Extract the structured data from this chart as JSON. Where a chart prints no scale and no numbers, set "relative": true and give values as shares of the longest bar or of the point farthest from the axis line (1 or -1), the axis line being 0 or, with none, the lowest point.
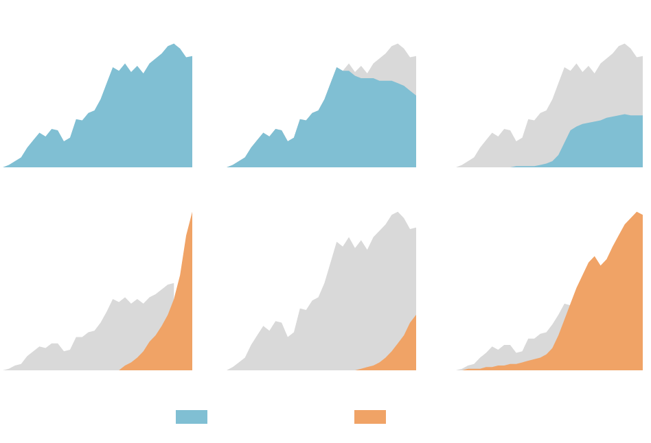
{
  "chart_data": [
    {
      "type": "area",
      "relative": true,
      "categories": [
        null,
        null,
        null,
        null,
        null,
        null,
        null,
        null,
        null,
        null,
        null,
        null,
        null,
        null,
        null,
        null,
        null,
        null,
        null,
        null,
        null,
        null,
        null,
        null,
        null,
        null,
        null,
        null,
        null,
        null,
        null,
        null
      ],
      "series": [
        {
          "color": "#80bfd3",
          "values": [
            0,
            0.02,
            0.05,
            0.08,
            0.16,
            0.22,
            0.28,
            0.25,
            0.31,
            0.3,
            0.21,
            0.24,
            0.39,
            0.38,
            0.44,
            0.46,
            0.55,
            0.68,
            0.81,
            0.78,
            0.84,
            0.77,
            0.82,
            0.76,
            0.84,
            0.88,
            0.92,
            0.98,
            1,
            0.96,
            0.89,
            0.9
          ]
        }
      ]
    },
    {
      "type": "area",
      "relative": true,
      "categories": [
        null,
        null,
        null,
        null,
        null,
        null,
        null,
        null,
        null,
        null,
        null,
        null,
        null,
        null,
        null,
        null,
        null,
        null,
        null,
        null,
        null,
        null,
        null,
        null,
        null,
        null,
        null,
        null,
        null,
        null,
        null,
        null
      ],
      "series": [
        {
          "color": "#d9d9d9",
          "values": [
            0,
            0.02,
            0.05,
            0.08,
            0.16,
            0.22,
            0.28,
            0.25,
            0.31,
            0.3,
            0.21,
            0.24,
            0.39,
            0.38,
            0.44,
            0.46,
            0.55,
            0.68,
            0.81,
            0.78,
            0.84,
            0.77,
            0.82,
            0.76,
            0.84,
            0.88,
            0.92,
            0.98,
            1,
            0.96,
            0.89,
            0.9
          ]
        },
        {
          "color": "#80bfd3",
          "values": [
            0,
            0.02,
            0.05,
            0.08,
            0.16,
            0.22,
            0.28,
            0.25,
            0.31,
            0.3,
            0.21,
            0.24,
            0.39,
            0.38,
            0.44,
            0.46,
            0.55,
            0.68,
            0.81,
            0.78,
            0.78,
            0.74,
            0.72,
            0.72,
            0.72,
            0.7,
            0.7,
            0.7,
            0.68,
            0.66,
            0.62,
            0.58
          ]
        }
      ]
    },
    {
      "type": "area",
      "relative": true,
      "categories": [
        null,
        null,
        null,
        null,
        null,
        null,
        null,
        null,
        null,
        null,
        null,
        null,
        null,
        null,
        null,
        null,
        null,
        null,
        null,
        null,
        null,
        null,
        null,
        null,
        null,
        null,
        null,
        null,
        null,
        null,
        null,
        null
      ],
      "series": [
        {
          "color": "#d9d9d9",
          "values": [
            0,
            0.02,
            0.05,
            0.08,
            0.16,
            0.22,
            0.28,
            0.25,
            0.31,
            0.3,
            0.21,
            0.24,
            0.39,
            0.38,
            0.44,
            0.46,
            0.55,
            0.68,
            0.81,
            0.78,
            0.84,
            0.77,
            0.82,
            0.76,
            0.84,
            0.88,
            0.92,
            0.98,
            1,
            0.96,
            0.89,
            0.9
          ]
        },
        {
          "color": "#80bfd3",
          "values": [
            0,
            0,
            0,
            0,
            0,
            0,
            0,
            0,
            0,
            0,
            0.01,
            0.01,
            0.01,
            0.01,
            0.02,
            0.03,
            0.05,
            0.1,
            0.2,
            0.3,
            0.33,
            0.35,
            0.36,
            0.37,
            0.38,
            0.4,
            0.41,
            0.42,
            0.43,
            0.42,
            0.42,
            0.42
          ]
        }
      ]
    },
    {
      "type": "area",
      "relative": true,
      "categories": [
        null,
        null,
        null,
        null,
        null,
        null,
        null,
        null,
        null,
        null,
        null,
        null,
        null,
        null,
        null,
        null,
        null,
        null,
        null,
        null,
        null,
        null,
        null,
        null,
        null,
        null,
        null,
        null,
        null,
        null,
        null,
        null
      ],
      "series": [
        {
          "color": "#d9d9d9",
          "values": [
            0,
            0.01,
            0.03,
            0.04,
            0.09,
            0.12,
            0.15,
            0.14,
            0.17,
            0.17,
            0.12,
            0.13,
            0.21,
            0.21,
            0.24,
            0.25,
            0.3,
            0.37,
            0.45,
            0.43,
            0.46,
            0.42,
            0.45,
            0.42,
            0.46,
            0.48,
            0.51,
            0.54,
            0.55,
            null,
            null,
            null
          ]
        },
        {
          "color": "#f0a366",
          "values": [
            0,
            0,
            0,
            0,
            0,
            0,
            0,
            0,
            0,
            0,
            0,
            0,
            0,
            0,
            0,
            0,
            0,
            0,
            0,
            0,
            0.03,
            0.05,
            0.08,
            0.12,
            0.18,
            0.22,
            0.28,
            0.35,
            0.45,
            0.6,
            0.85,
            1.0
          ]
        }
      ]
    },
    {
      "type": "area",
      "relative": true,
      "categories": [
        null,
        null,
        null,
        null,
        null,
        null,
        null,
        null,
        null,
        null,
        null,
        null,
        null,
        null,
        null,
        null,
        null,
        null,
        null,
        null,
        null,
        null,
        null,
        null,
        null,
        null,
        null,
        null,
        null,
        null,
        null,
        null
      ],
      "series": [
        {
          "color": "#d9d9d9",
          "values": [
            0,
            0.02,
            0.05,
            0.08,
            0.16,
            0.22,
            0.28,
            0.25,
            0.31,
            0.3,
            0.21,
            0.24,
            0.39,
            0.38,
            0.44,
            0.46,
            0.55,
            0.68,
            0.81,
            0.78,
            0.84,
            0.77,
            0.82,
            0.76,
            0.84,
            0.88,
            0.92,
            0.98,
            1,
            0.96,
            0.89,
            0.9
          ]
        },
        {
          "color": "#f0a366",
          "values": [
            0,
            0,
            0,
            0,
            0,
            0,
            0,
            0,
            0,
            0,
            0,
            0,
            0,
            0,
            0,
            0,
            0,
            0,
            0,
            0,
            0,
            0,
            0.01,
            0.02,
            0.03,
            0.05,
            0.08,
            0.12,
            0.17,
            0.22,
            0.3,
            0.35
          ]
        }
      ]
    },
    {
      "type": "area",
      "relative": true,
      "categories": [
        null,
        null,
        null,
        null,
        null,
        null,
        null,
        null,
        null,
        null,
        null,
        null,
        null,
        null,
        null,
        null,
        null,
        null,
        null,
        null,
        null,
        null,
        null,
        null,
        null,
        null,
        null,
        null,
        null,
        null,
        null,
        null
      ],
      "series": [
        {
          "color": "#d9d9d9",
          "values": [
            0,
            0.01,
            0.03,
            0.04,
            0.08,
            0.11,
            0.15,
            0.13,
            0.16,
            0.16,
            0.11,
            0.12,
            0.2,
            0.2,
            0.23,
            0.24,
            0.29,
            0.35,
            0.42,
            0.41,
            null,
            null,
            null,
            null,
            null,
            null,
            null,
            null,
            null,
            null,
            null,
            null
          ]
        },
        {
          "color": "#f0a366",
          "values": [
            0,
            0,
            0.01,
            0.01,
            0.01,
            0.02,
            0.02,
            0.03,
            0.03,
            0.04,
            0.04,
            0.05,
            0.06,
            0.07,
            0.08,
            0.1,
            0.14,
            0.22,
            0.32,
            0.42,
            0.52,
            0.6,
            0.68,
            0.72,
            0.66,
            0.7,
            0.78,
            0.85,
            0.92,
            0.96,
            1.0,
            0.98
          ]
        }
      ]
    }
  ]
}
